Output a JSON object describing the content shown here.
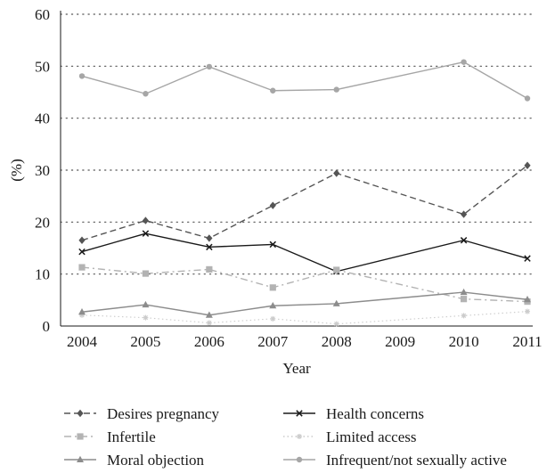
{
  "chart_data": {
    "type": "line",
    "title": "",
    "xlabel": "Year",
    "ylabel": "(%)",
    "ylim": [
      0,
      60
    ],
    "yticks": [
      0,
      10,
      20,
      30,
      40,
      50,
      60
    ],
    "categories": [
      "2004",
      "2005",
      "2006",
      "2007",
      "2008",
      "2009",
      "2010",
      "2011"
    ],
    "grid": "horizontal dotted",
    "legend_position": "bottom",
    "series": [
      {
        "name": "Desires pregnancy",
        "marker": "diamond",
        "dash": "dashed",
        "color": "#555555",
        "values": [
          16.5,
          20.3,
          16.9,
          23.2,
          29.4,
          null,
          21.5,
          30.9
        ]
      },
      {
        "name": "Health concerns",
        "marker": "x",
        "dash": "solid",
        "color": "#1a1a1a",
        "values": [
          14.3,
          17.8,
          15.2,
          15.7,
          10.5,
          null,
          16.5,
          13.0
        ]
      },
      {
        "name": "Infertile",
        "marker": "square",
        "dash": "dashdot",
        "color": "#b3b3b3",
        "values": [
          11.3,
          10.1,
          10.9,
          7.4,
          10.8,
          null,
          5.2,
          4.7
        ]
      },
      {
        "name": "Limited access",
        "marker": "star",
        "dash": "dotted",
        "color": "#cccccc",
        "values": [
          2.1,
          1.6,
          0.6,
          1.4,
          0.4,
          null,
          2.0,
          2.8
        ]
      },
      {
        "name": "Moral objection",
        "marker": "triangle",
        "dash": "solid",
        "color": "#8c8c8c",
        "values": [
          2.7,
          4.1,
          2.1,
          3.9,
          4.3,
          null,
          6.5,
          5.1
        ]
      },
      {
        "name": "Infrequent/not sexually active",
        "marker": "circle",
        "dash": "solid",
        "color": "#a6a6a6",
        "values": [
          48.1,
          44.7,
          49.9,
          45.3,
          45.5,
          null,
          50.8,
          43.8
        ]
      }
    ]
  }
}
